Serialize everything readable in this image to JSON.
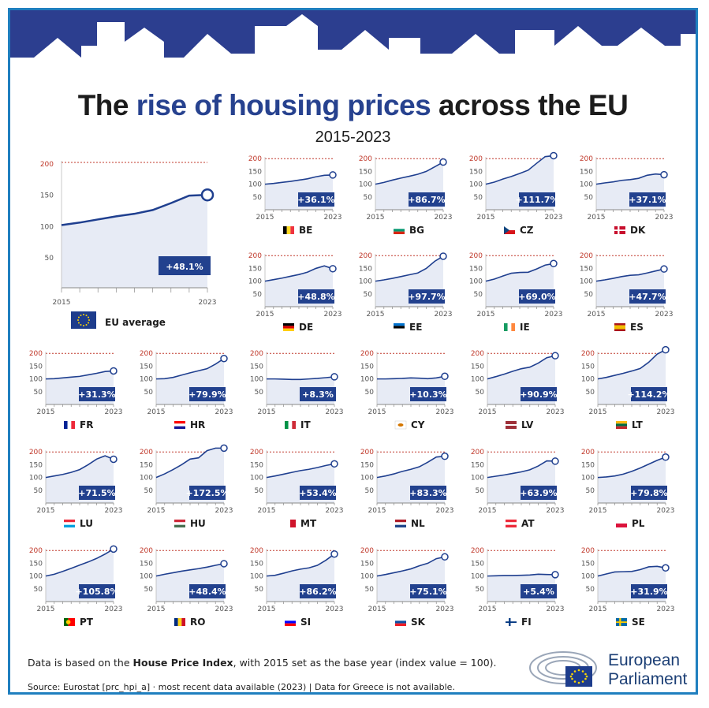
{
  "title": {
    "pre": "The ",
    "highlight": "rise of housing prices",
    "post": " across the EU"
  },
  "subtitle": "2015-2023",
  "footnote": {
    "pre": "Data is based on the ",
    "bold": "House Price Index",
    "post": ", with 2015 set as the base year (index value = 100)."
  },
  "source": "Source: Eurostat [prc_hpi_a]  ·  most recent data available (2023)  |  Data for Greece is not available.",
  "brand": {
    "line1": "European",
    "line2": "Parliament"
  },
  "colors": {
    "line": "#1f3f8f",
    "fill": "#e7ebf5",
    "badge": "#22418e",
    "ref_line": "#c0392b",
    "frame": "#1f7fbf",
    "banner": "#2c3e8f"
  },
  "chart_data": {
    "type": "line",
    "x": [
      2015,
      2016,
      2017,
      2018,
      2019,
      2020,
      2021,
      2022,
      2023
    ],
    "x_tick_labels": [
      "2015",
      "2023"
    ],
    "y_ticks": [
      50,
      100,
      150,
      200
    ],
    "ylim": [
      0,
      210
    ],
    "reference_line": 200,
    "eu_average": {
      "label": "EU average",
      "values": [
        100,
        104,
        109,
        114,
        118,
        124,
        135,
        147,
        148.1
      ],
      "change": "+48.1%"
    },
    "countries": [
      {
        "code": "BE",
        "change": "+36.1%",
        "flag": [
          "#000000",
          "#fdda24",
          "#ef3340"
        ],
        "orient": "v",
        "values": [
          100,
          103,
          107,
          111,
          116,
          121,
          129,
          135,
          136.1
        ]
      },
      {
        "code": "BG",
        "change": "+86.7%",
        "flag": [
          "#ffffff",
          "#00966e",
          "#d62612"
        ],
        "orient": "h",
        "values": [
          100,
          107,
          116,
          124,
          131,
          139,
          150,
          168,
          186.7
        ]
      },
      {
        "code": "CZ",
        "change": "+111.7%",
        "flag": [
          "#ffffff",
          "#d7141a",
          "#11457e"
        ],
        "orient": "cz",
        "values": [
          100,
          108,
          120,
          130,
          142,
          155,
          182,
          208,
          211.7
        ]
      },
      {
        "code": "DK",
        "change": "+37.1%",
        "flag": [
          "#c8102e",
          "#ffffff"
        ],
        "orient": "nordic",
        "values": [
          100,
          105,
          109,
          115,
          118,
          123,
          135,
          140,
          137.1
        ]
      },
      {
        "code": "DE",
        "change": "+48.8%",
        "flag": [
          "#000000",
          "#dd0000",
          "#ffce00"
        ],
        "orient": "h",
        "values": [
          100,
          106,
          112,
          119,
          126,
          135,
          150,
          160,
          148.8
        ]
      },
      {
        "code": "EE",
        "change": "+97.7%",
        "flag": [
          "#0072ce",
          "#000000",
          "#ffffff"
        ],
        "orient": "h",
        "values": [
          100,
          105,
          111,
          118,
          125,
          132,
          150,
          178,
          197.7
        ]
      },
      {
        "code": "IE",
        "change": "+69.0%",
        "flag": [
          "#169b62",
          "#ffffff",
          "#ff883e"
        ],
        "orient": "v",
        "values": [
          100,
          108,
          120,
          131,
          134,
          135,
          148,
          163,
          169.0
        ]
      },
      {
        "code": "ES",
        "change": "+47.7%",
        "flag": [
          "#aa151b",
          "#f1bf00",
          "#aa151b"
        ],
        "orient": "es",
        "values": [
          100,
          105,
          111,
          118,
          123,
          125,
          132,
          140,
          147.7
        ]
      },
      {
        "code": "FR",
        "change": "+31.3%",
        "flag": [
          "#002395",
          "#ffffff",
          "#ed2939"
        ],
        "orient": "v",
        "values": [
          100,
          101,
          104,
          107,
          110,
          116,
          122,
          129,
          131.3
        ]
      },
      {
        "code": "HR",
        "change": "+79.9%",
        "flag": [
          "#ff0000",
          "#ffffff",
          "#171796"
        ],
        "orient": "h",
        "values": [
          100,
          101,
          106,
          115,
          124,
          132,
          140,
          158,
          179.9
        ]
      },
      {
        "code": "IT",
        "change": "+8.3%",
        "flag": [
          "#009246",
          "#ffffff",
          "#ce2b37"
        ],
        "orient": "v",
        "values": [
          100,
          100,
          99,
          98,
          98,
          100,
          102,
          105,
          108.3
        ]
      },
      {
        "code": "CY",
        "change": "+10.3%",
        "flag": [
          "#ffffff",
          "#d47600"
        ],
        "orient": "cy",
        "values": [
          100,
          100,
          101,
          102,
          104,
          103,
          101,
          104,
          110.3
        ]
      },
      {
        "code": "LV",
        "change": "+90.9%",
        "flag": [
          "#9e3039",
          "#ffffff",
          "#9e3039"
        ],
        "orient": "lv",
        "values": [
          100,
          109,
          119,
          130,
          140,
          146,
          162,
          183,
          190.9
        ]
      },
      {
        "code": "LT",
        "change": "+114.2%",
        "flag": [
          "#fdb913",
          "#006a44",
          "#c1272d"
        ],
        "orient": "h",
        "values": [
          100,
          106,
          114,
          122,
          131,
          141,
          165,
          197,
          214.2
        ]
      },
      {
        "code": "LU",
        "change": "+71.5%",
        "flag": [
          "#ed2939",
          "#ffffff",
          "#00a1de"
        ],
        "orient": "h",
        "values": [
          100,
          106,
          112,
          120,
          131,
          150,
          172,
          185,
          171.5
        ]
      },
      {
        "code": "HU",
        "change": "+172.5%",
        "flag": [
          "#ce2939",
          "#ffffff",
          "#477050"
        ],
        "orient": "h",
        "values": [
          100,
          114,
          131,
          150,
          172,
          177,
          205,
          250,
          272.5
        ]
      },
      {
        "code": "MT",
        "change": "+53.4%",
        "flag": [
          "#ffffff",
          "#cf142b"
        ],
        "orient": "v2",
        "values": [
          100,
          106,
          113,
          120,
          127,
          132,
          139,
          147,
          153.4
        ]
      },
      {
        "code": "NL",
        "change": "+83.3%",
        "flag": [
          "#ae1c28",
          "#ffffff",
          "#21468b"
        ],
        "orient": "h",
        "values": [
          100,
          106,
          114,
          124,
          132,
          142,
          160,
          180,
          183.3
        ]
      },
      {
        "code": "AT",
        "change": "+63.9%",
        "flag": [
          "#ed2939",
          "#ffffff",
          "#ed2939"
        ],
        "orient": "h",
        "values": [
          100,
          105,
          110,
          116,
          122,
          130,
          145,
          165,
          163.9
        ]
      },
      {
        "code": "PL",
        "change": "+79.8%",
        "flag": [
          "#ffffff",
          "#dc143c"
        ],
        "orient": "h2",
        "values": [
          100,
          102,
          106,
          113,
          124,
          137,
          152,
          167,
          179.8
        ]
      },
      {
        "code": "PT",
        "change": "+105.8%",
        "flag": [
          "#006600",
          "#ff0000"
        ],
        "orient": "pt",
        "values": [
          100,
          107,
          118,
          130,
          143,
          155,
          169,
          186,
          205.8
        ]
      },
      {
        "code": "RO",
        "change": "+48.4%",
        "flag": [
          "#002b7f",
          "#fcd116",
          "#ce1126"
        ],
        "orient": "v",
        "values": [
          100,
          107,
          113,
          119,
          124,
          129,
          135,
          142,
          148.4
        ]
      },
      {
        "code": "SI",
        "change": "+86.2%",
        "flag": [
          "#ffffff",
          "#0000ff",
          "#ff0000"
        ],
        "orient": "h",
        "values": [
          100,
          103,
          111,
          120,
          127,
          132,
          142,
          162,
          186.2
        ]
      },
      {
        "code": "SK",
        "change": "+75.1%",
        "flag": [
          "#ffffff",
          "#0b4ea2",
          "#ee1c25"
        ],
        "orient": "h",
        "values": [
          100,
          106,
          113,
          120,
          128,
          140,
          150,
          168,
          175.1
        ]
      },
      {
        "code": "FI",
        "change": "+5.4%",
        "flag": [
          "#ffffff",
          "#003580"
        ],
        "orient": "nordic",
        "values": [
          100,
          101,
          102,
          102,
          103,
          104,
          107,
          106,
          105.4
        ]
      },
      {
        "code": "SE",
        "change": "+31.9%",
        "flag": [
          "#006aa7",
          "#fecc00"
        ],
        "orient": "nordic",
        "values": [
          100,
          108,
          116,
          117,
          118,
          125,
          136,
          138,
          131.9
        ]
      }
    ]
  }
}
